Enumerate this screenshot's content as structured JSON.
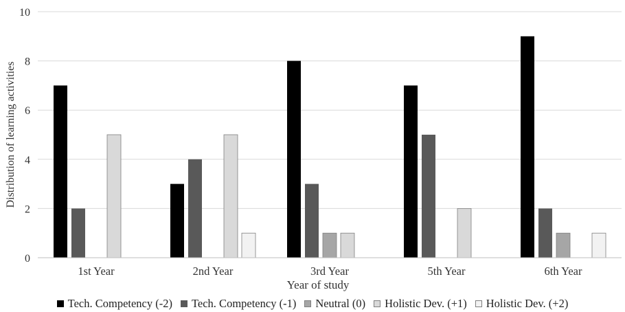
{
  "chart_data": {
    "type": "bar",
    "title": "",
    "xlabel": "Year of study",
    "ylabel": "Distribution of learning activities",
    "ylim": [
      0,
      10
    ],
    "yticks": [
      "0",
      "2",
      "4",
      "6",
      "8",
      "10"
    ],
    "categories": [
      "1st Year",
      "2nd Year",
      "3rd Year",
      "5th Year",
      "6th Year"
    ],
    "series": [
      {
        "name": "Tech. Competency (-2)",
        "color": "#000000",
        "values": [
          7,
          3,
          8,
          7,
          9
        ]
      },
      {
        "name": "Tech. Competency (-1)",
        "color": "#595959",
        "values": [
          2,
          4,
          3,
          5,
          2
        ]
      },
      {
        "name": "Neutral (0)",
        "color": "#a6a6a6",
        "values": [
          0,
          0,
          1,
          0,
          1
        ]
      },
      {
        "name": "Holistic Dev. (+1)",
        "color": "#d9d9d9",
        "values": [
          5,
          5,
          1,
          2,
          0
        ]
      },
      {
        "name": "Holistic Dev. (+2)",
        "color": "#f2f2f2",
        "values": [
          0,
          1,
          0,
          0,
          1
        ]
      }
    ],
    "grid": true,
    "legend_position": "bottom"
  }
}
